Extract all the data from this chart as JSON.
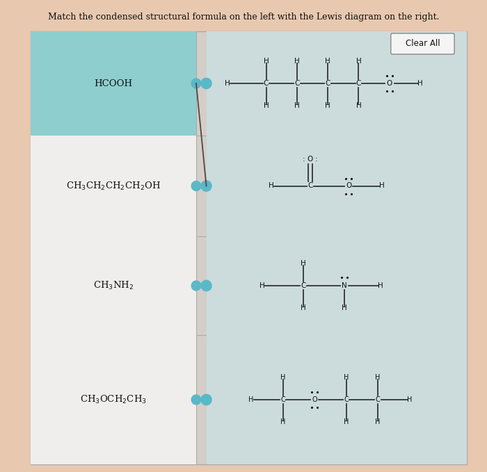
{
  "title": "Match the condensed structural formula on the left with the Lewis diagram on the right.",
  "bg_outer": "#e8c9b0",
  "bg_inner": "#d8d0c8",
  "row0_left_color": "#8ecece",
  "row_left_color": "#f0eeec",
  "row_right_color": "#ccdcdc",
  "left_labels": [
    "HCOOH",
    "CH$_3$CH$_2$CH$_2$CH$_2$OH",
    "CH$_3$NH$_2$",
    "CH$_3$OCH$_2$CH$_3$"
  ],
  "dot_teal": "#5ab8c8",
  "connector_color": "#554444",
  "clear_btn_color": "#f4f4f4",
  "clear_btn_edge": "#888888",
  "bond_color": "#333333",
  "atom_color": "#111111"
}
